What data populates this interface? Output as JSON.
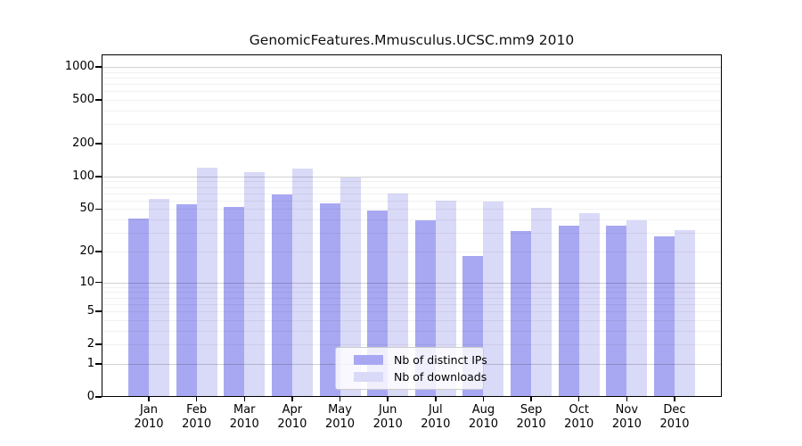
{
  "title": "GenomicFeatures.Mmusculus.UCSC.mm9 2010",
  "colors": {
    "background": "#ffffff",
    "axis": "#000000",
    "grid_major": "rgba(0,0,0,0.18)",
    "grid_minor": "rgba(0,0,0,0.055)",
    "legend_border": "#cccccc",
    "distinct_ips_bar": "#a8a8f2",
    "downloads_bar": "#d9d9f8"
  },
  "legend": {
    "items": [
      {
        "label": "Nb of distinct IPs",
        "color": "#a8a8f2"
      },
      {
        "label": "Nb of downloads",
        "color": "#d9d9f8"
      }
    ]
  },
  "chart_data": {
    "type": "bar",
    "title": "GenomicFeatures.Mmusculus.UCSC.mm9 2010",
    "xlabel": "",
    "ylabel": "",
    "scale": "log10(1+y)",
    "ylim": [
      0,
      1300
    ],
    "grid": true,
    "legend_position": "lower center",
    "categories": [
      {
        "month": "Jan",
        "year": "2010"
      },
      {
        "month": "Feb",
        "year": "2010"
      },
      {
        "month": "Mar",
        "year": "2010"
      },
      {
        "month": "Apr",
        "year": "2010"
      },
      {
        "month": "May",
        "year": "2010"
      },
      {
        "month": "Jun",
        "year": "2010"
      },
      {
        "month": "Jul",
        "year": "2010"
      },
      {
        "month": "Aug",
        "year": "2010"
      },
      {
        "month": "Sep",
        "year": "2010"
      },
      {
        "month": "Oct",
        "year": "2010"
      },
      {
        "month": "Nov",
        "year": "2010"
      },
      {
        "month": "Dec",
        "year": "2010"
      }
    ],
    "series": [
      {
        "name": "Nb of distinct IPs",
        "color": "#a8a8f2",
        "values": [
          41,
          55,
          52,
          68,
          57,
          49,
          39,
          18,
          31,
          35,
          35,
          28
        ]
      },
      {
        "name": "Nb of downloads",
        "color": "#d9d9f8",
        "values": [
          62,
          120,
          109,
          118,
          98,
          69,
          60,
          59,
          51,
          46,
          39,
          32
        ]
      }
    ],
    "y_ticks": [
      0,
      1,
      2,
      5,
      10,
      20,
      50,
      100,
      200,
      500,
      1000
    ],
    "y_grid_major": [
      1,
      10,
      100,
      1000
    ],
    "y_grid_minor": [
      2,
      3,
      4,
      5,
      6,
      7,
      8,
      9,
      20,
      30,
      40,
      50,
      60,
      70,
      80,
      90,
      200,
      300,
      400,
      500,
      600,
      700,
      800,
      900
    ]
  }
}
